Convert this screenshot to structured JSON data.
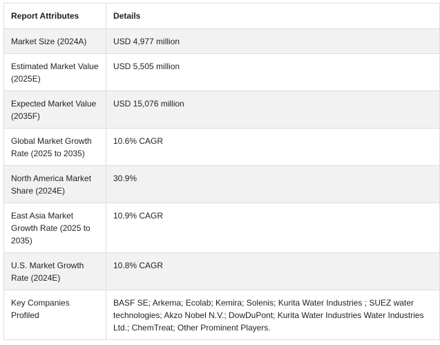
{
  "table": {
    "headers": [
      "Report Attributes",
      "Details"
    ],
    "rows": [
      {
        "attribute": "Market Size (2024A)",
        "details": "USD 4,977 million"
      },
      {
        "attribute": "Estimated Market Value (2025E)",
        "details": "USD 5,505 million"
      },
      {
        "attribute": "Expected Market Value (2035F)",
        "details": "USD 15,076 million"
      },
      {
        "attribute": "Global Market Growth Rate (2025 to 2035)",
        "details": "10.6% CAGR"
      },
      {
        "attribute": "North America Market Share (2024E)",
        "details": "30.9%"
      },
      {
        "attribute": "East Asia Market Growth Rate (2025 to 2035)",
        "details": "10.9% CAGR"
      },
      {
        "attribute": "U.S. Market Growth Rate (2024E)",
        "details": "10.8% CAGR"
      },
      {
        "attribute": "Key Companies Profiled",
        "details": "BASF SE; Arkema; Ecolab; Kemira; Solenis; Kurita Water Industries ; SUEZ water technologies; Akzo Nobel N.V.; DowDuPont; Kurita Water Industries Water Industries Ltd.; ChemTreat; Other Prominent Players."
      }
    ]
  }
}
